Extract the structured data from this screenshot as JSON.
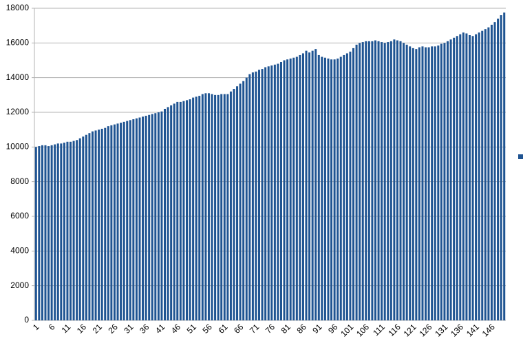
{
  "chart_data": {
    "type": "bar",
    "color": "#1f5492",
    "grid": true,
    "categories": [
      1,
      null,
      null,
      null,
      null,
      6,
      null,
      null,
      null,
      null,
      11,
      null,
      null,
      null,
      null,
      16,
      null,
      null,
      null,
      null,
      21,
      null,
      null,
      null,
      null,
      26,
      null,
      null,
      null,
      null,
      31,
      null,
      null,
      null,
      null,
      36,
      null,
      null,
      null,
      null,
      41,
      null,
      null,
      null,
      null,
      46,
      null,
      null,
      null,
      null,
      51,
      null,
      null,
      null,
      null,
      56,
      null,
      null,
      null,
      null,
      61,
      null,
      null,
      null,
      null,
      66,
      null,
      null,
      null,
      null,
      71,
      null,
      null,
      null,
      null,
      76,
      null,
      null,
      null,
      null,
      81,
      null,
      null,
      null,
      null,
      86,
      null,
      null,
      null,
      null,
      91,
      null,
      null,
      null,
      null,
      96,
      null,
      null,
      null,
      null,
      101,
      null,
      null,
      null,
      null,
      106,
      null,
      null,
      null,
      null,
      111,
      null,
      null,
      null,
      null,
      116,
      null,
      null,
      null,
      null,
      121,
      null,
      null,
      null,
      null,
      126,
      null,
      null,
      null,
      null,
      131,
      null,
      null,
      null,
      null,
      136,
      null,
      null,
      null,
      null,
      141,
      null,
      null,
      null,
      null,
      146,
      null,
      null,
      null,
      null
    ],
    "values": [
      10000,
      10050,
      10100,
      10100,
      10050,
      10100,
      10150,
      10200,
      10200,
      10250,
      10300,
      10300,
      10350,
      10400,
      10500,
      10600,
      10700,
      10800,
      10900,
      10950,
      11000,
      11050,
      11100,
      11200,
      11250,
      11300,
      11350,
      11400,
      11450,
      11500,
      11550,
      11600,
      11650,
      11700,
      11750,
      11800,
      11850,
      11900,
      11950,
      12000,
      12050,
      12200,
      12300,
      12400,
      12500,
      12600,
      12600,
      12650,
      12700,
      12750,
      12850,
      12900,
      12950,
      13050,
      13100,
      13100,
      13050,
      13000,
      13000,
      13050,
      13050,
      13050,
      13200,
      13350,
      13500,
      13650,
      13800,
      14000,
      14200,
      14300,
      14350,
      14450,
      14500,
      14600,
      14650,
      14700,
      14750,
      14800,
      14900,
      15000,
      15050,
      15100,
      15150,
      15200,
      15300,
      15400,
      15550,
      15450,
      15550,
      15650,
      15300,
      15200,
      15150,
      15100,
      15050,
      15050,
      15100,
      15200,
      15300,
      15400,
      15500,
      15700,
      15900,
      16000,
      16050,
      16100,
      16100,
      16100,
      16150,
      16100,
      16050,
      16000,
      16050,
      16100,
      16200,
      16150,
      16100,
      16000,
      15900,
      15800,
      15700,
      15650,
      15750,
      15800,
      15750,
      15750,
      15800,
      15800,
      15850,
      15950,
      16000,
      16100,
      16200,
      16300,
      16400,
      16500,
      16600,
      16550,
      16450,
      16400,
      16500,
      16600,
      16700,
      16800,
      16900,
      17050,
      17200,
      17400,
      17600,
      17750
    ],
    "ylim": [
      0,
      18000
    ],
    "yticks": [
      0,
      2000,
      4000,
      6000,
      8000,
      10000,
      12000,
      14000,
      16000,
      18000
    ]
  }
}
